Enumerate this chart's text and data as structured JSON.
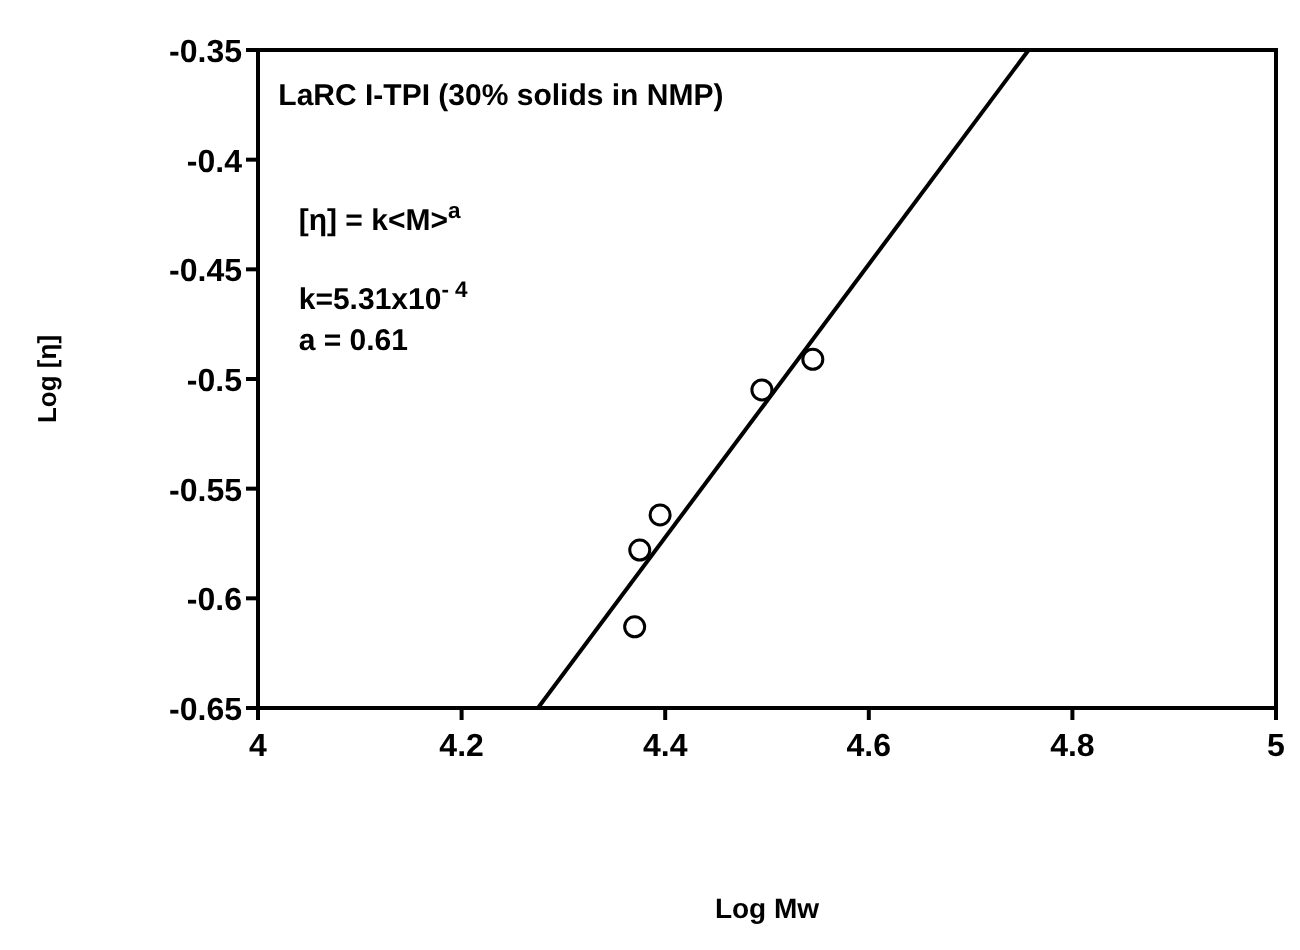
{
  "chart_data": {
    "type": "scatter",
    "xlabel": "Log Mw",
    "ylabel": "Log [η]",
    "xlim": [
      4,
      5
    ],
    "ylim": [
      -0.65,
      -0.35
    ],
    "xticks": [
      4,
      4.2,
      4.4,
      4.6,
      4.8,
      5
    ],
    "yticks": [
      -0.65,
      -0.6,
      -0.55,
      -0.5,
      -0.45,
      -0.4,
      -0.35
    ],
    "grid": false,
    "marker": "circle",
    "series": [
      {
        "color": "#000000",
        "x": [
          4.37,
          4.375,
          4.395,
          4.495,
          4.545
        ],
        "values": [
          -0.613,
          -0.578,
          -0.562,
          -0.505,
          -0.491
        ]
      },
      {
        "type": "line",
        "color": "#000000",
        "marker": "none",
        "x": [
          4.275,
          4.757
        ],
        "values": [
          -0.65,
          -0.35
        ]
      }
    ],
    "annotations": [
      "LaRC I-TPI (30% solids in NMP)",
      "[η] = k<M>$^{a}$",
      "k=5.31x10$^{- 4}$",
      "a = 0.61"
    ]
  }
}
